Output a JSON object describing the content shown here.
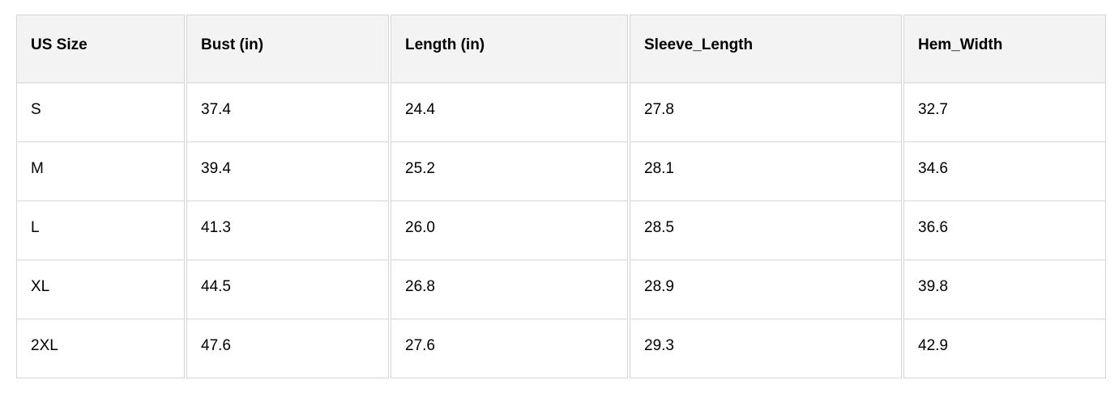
{
  "table": {
    "columns": [
      "US Size",
      "Bust (in)",
      "Length (in)",
      "Sleeve_Length",
      "Hem_Width"
    ],
    "rows": [
      [
        "S",
        "37.4",
        "24.4",
        "27.8",
        "32.7"
      ],
      [
        "M",
        "39.4",
        "25.2",
        "28.1",
        "34.6"
      ],
      [
        "L",
        "41.3",
        "26.0",
        "28.5",
        "36.6"
      ],
      [
        "XL",
        "44.5",
        "26.8",
        "28.9",
        "39.8"
      ],
      [
        "2XL",
        "47.6",
        "27.6",
        "29.3",
        "42.9"
      ]
    ]
  },
  "colors": {
    "header_bg": "#f3f3f3",
    "row_bg": "#ffffff",
    "border": "#d6d6d6",
    "text": "#000000"
  },
  "chart_data": {
    "type": "table",
    "title": "",
    "categories": [
      "S",
      "M",
      "L",
      "XL",
      "2XL"
    ],
    "series": [
      {
        "name": "Bust (in)",
        "values": [
          37.4,
          39.4,
          41.3,
          44.5,
          47.6
        ]
      },
      {
        "name": "Length (in)",
        "values": [
          24.4,
          25.2,
          26.0,
          26.8,
          27.6
        ]
      },
      {
        "name": "Sleeve_Length",
        "values": [
          27.8,
          28.1,
          28.5,
          28.9,
          29.3
        ]
      },
      {
        "name": "Hem_Width",
        "values": [
          32.7,
          34.6,
          36.6,
          39.8,
          42.9
        ]
      }
    ]
  }
}
